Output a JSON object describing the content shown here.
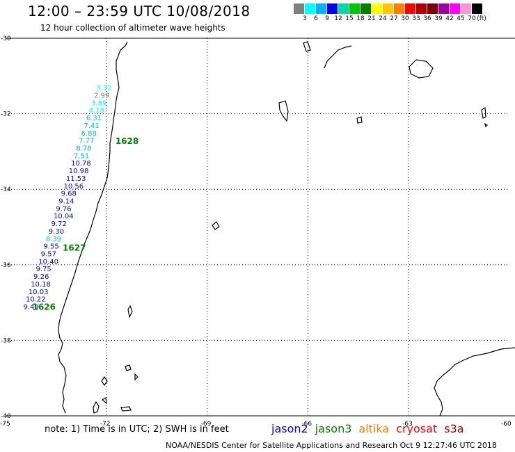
{
  "title": "12:00 – 23:59 UTC 10/08/2018",
  "subtitle": "12 hour collection of altimeter wave heights",
  "legend": {
    "colors": [
      "#808080",
      "#00ffff",
      "#00b4ff",
      "#0000ff",
      "#00d8a8",
      "#00c800",
      "#008000",
      "#ffff00",
      "#ffc800",
      "#ff8000",
      "#ff0000",
      "#b40000",
      "#800000",
      "#a000a0",
      "#ff00ff",
      "#ff96d2",
      "#000000"
    ],
    "labels": [
      "3",
      "6",
      "9",
      "12",
      "15",
      "18",
      "21",
      "24",
      "27",
      "30",
      "33",
      "36",
      "39",
      "42",
      "45",
      "70"
    ],
    "unit": "(ft)"
  },
  "axes": {
    "lat_labels": [
      "-30",
      "-32",
      "-34",
      "-36",
      "-38",
      "-40"
    ],
    "lat_values": [
      -30,
      -32,
      -34,
      -36,
      -38,
      -40
    ],
    "lon_labels": [
      "-75",
      "-72",
      "-69",
      "-66",
      "-63",
      "-60"
    ],
    "lon_values": [
      -75,
      -72,
      -69,
      -66,
      -63,
      -60
    ],
    "lon_range": [
      -75,
      -60
    ],
    "lat_range": [
      -40,
      -30
    ],
    "grid": "dotted"
  },
  "wave_heights": [
    {
      "text": "3.32",
      "color": "#00ffff",
      "lon": -72.3,
      "lat": -31.3
    },
    {
      "text": "2.99",
      "color": "#808080",
      "lon": -72.37,
      "lat": -31.5
    },
    {
      "text": "3.89",
      "color": "#00ffff",
      "lon": -72.45,
      "lat": -31.7
    },
    {
      "text": "4.18",
      "color": "#00ffff",
      "lon": -72.52,
      "lat": -31.9
    },
    {
      "text": "6.31",
      "color": "#00b4ff",
      "lon": -72.6,
      "lat": -32.1
    },
    {
      "text": "7.41",
      "color": "#00b4ff",
      "lon": -72.67,
      "lat": -32.3
    },
    {
      "text": "6.88",
      "color": "#00b4ff",
      "lon": -72.75,
      "lat": -32.5
    },
    {
      "text": "7.77",
      "color": "#00b4ff",
      "lon": -72.82,
      "lat": -32.7
    },
    {
      "text": "8.78",
      "color": "#00b4ff",
      "lon": -72.9,
      "lat": -32.9
    },
    {
      "text": "7.51",
      "color": "#00b4ff",
      "lon": -72.97,
      "lat": -33.1
    },
    {
      "text": "10.78",
      "color": "#0000ff",
      "lon": -73.05,
      "lat": -33.3
    },
    {
      "text": "10.98",
      "color": "#0000ff",
      "lon": -73.12,
      "lat": -33.5
    },
    {
      "text": "11.53",
      "color": "#0000ff",
      "lon": -73.2,
      "lat": -33.7
    },
    {
      "text": "10.56",
      "color": "#0000ff",
      "lon": -73.27,
      "lat": -33.9
    },
    {
      "text": "9.68",
      "color": "#0000ff",
      "lon": -73.35,
      "lat": -34.1
    },
    {
      "text": "9.14",
      "color": "#0000ff",
      "lon": -73.42,
      "lat": -34.3
    },
    {
      "text": "9.76",
      "color": "#0000ff",
      "lon": -73.5,
      "lat": -34.5
    },
    {
      "text": "10.04",
      "color": "#0000ff",
      "lon": -73.57,
      "lat": -34.7
    },
    {
      "text": "9.72",
      "color": "#0000ff",
      "lon": -73.64,
      "lat": -34.9
    },
    {
      "text": "9.30",
      "color": "#0000ff",
      "lon": -73.72,
      "lat": -35.1
    },
    {
      "text": "8.39",
      "color": "#00b4ff",
      "lon": -73.8,
      "lat": -35.3
    },
    {
      "text": "9.55",
      "color": "#0000ff",
      "lon": -73.87,
      "lat": -35.5
    },
    {
      "text": "9.57",
      "color": "#0000ff",
      "lon": -73.95,
      "lat": -35.7
    },
    {
      "text": "10.40",
      "color": "#0000ff",
      "lon": -74.02,
      "lat": -35.9
    },
    {
      "text": "9.75",
      "color": "#0000ff",
      "lon": -74.1,
      "lat": -36.1
    },
    {
      "text": "9.26",
      "color": "#0000ff",
      "lon": -74.17,
      "lat": -36.3
    },
    {
      "text": "10.18",
      "color": "#0000ff",
      "lon": -74.25,
      "lat": -36.5
    },
    {
      "text": "10.03",
      "color": "#0000ff",
      "lon": -74.32,
      "lat": -36.7
    },
    {
      "text": "10.22",
      "color": "#0000ff",
      "lon": -74.4,
      "lat": -36.9
    },
    {
      "text": "9.49",
      "color": "#0000ff",
      "lon": -74.47,
      "lat": -37.1
    }
  ],
  "pass_labels": [
    {
      "text": "1628",
      "lon": -71.73,
      "lat": -32.73
    },
    {
      "text": "1627",
      "lon": -73.3,
      "lat": -35.55
    },
    {
      "text": "1626",
      "lon": -74.2,
      "lat": -37.12
    }
  ],
  "note": "note:  1) Time is in UTC;  2) SWH is in feet",
  "missions": [
    {
      "name": "jason2",
      "color": "#0000ff"
    },
    {
      "name": "jason3",
      "color": "#008000"
    },
    {
      "name": "altika",
      "color": "#ff8000"
    },
    {
      "name": "cryosat",
      "color": "#ff0000"
    },
    {
      "name": "s3a",
      "color": "#b40000"
    }
  ],
  "footer": "NOAA/NESDIS Center for Satellite Applications and Research    Oct  9 12:27:46 UTC 2018"
}
